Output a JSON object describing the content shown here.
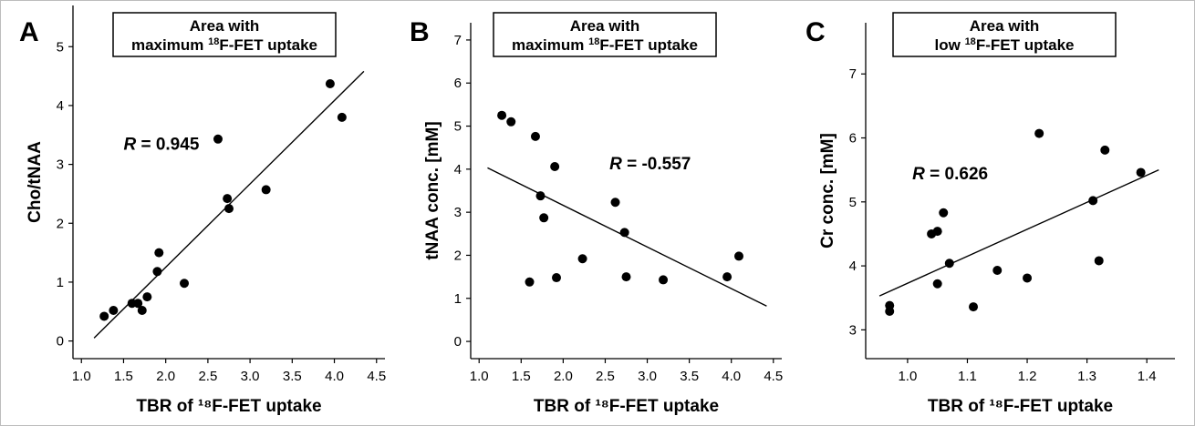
{
  "chart_data": [
    {
      "type": "scatter",
      "panel_label": "A",
      "xlabel": "TBR of ¹⁸F-FET uptake",
      "ylabel": "Cho/tNAA",
      "xlim": [
        0.9,
        4.6
      ],
      "ylim": [
        -0.3,
        5.7
      ],
      "xticks": [
        1.0,
        1.5,
        2.0,
        2.5,
        3.0,
        3.5,
        4.0,
        4.5
      ],
      "xtick_labels": [
        "1.0",
        "1.5",
        "2.0",
        "2.5",
        "3.0",
        "3.5",
        "4.0",
        "4.5"
      ],
      "yticks": [
        0,
        1,
        2,
        3,
        4,
        5
      ],
      "ytick_labels": [
        "0",
        "1",
        "2",
        "3",
        "4",
        "5"
      ],
      "box_lines": [
        {
          "text": "Area with"
        },
        {
          "text_before": "maximum ",
          "sup": "18",
          "text_after": "F-FET uptake"
        }
      ],
      "r_label": {
        "italic": "R",
        "text": " = 0.945"
      },
      "r_pos": [
        1.5,
        3.25
      ],
      "points": [
        {
          "x": 1.27,
          "y": 0.42
        },
        {
          "x": 1.38,
          "y": 0.52
        },
        {
          "x": 1.6,
          "y": 0.64
        },
        {
          "x": 1.67,
          "y": 0.64
        },
        {
          "x": 1.72,
          "y": 0.52
        },
        {
          "x": 1.78,
          "y": 0.75
        },
        {
          "x": 1.9,
          "y": 1.18
        },
        {
          "x": 1.92,
          "y": 1.5
        },
        {
          "x": 2.22,
          "y": 0.98
        },
        {
          "x": 2.62,
          "y": 3.43
        },
        {
          "x": 2.73,
          "y": 2.42
        },
        {
          "x": 2.75,
          "y": 2.25
        },
        {
          "x": 3.19,
          "y": 2.57
        },
        {
          "x": 3.95,
          "y": 4.37
        },
        {
          "x": 4.09,
          "y": 3.8
        }
      ],
      "regression": {
        "x1": 1.15,
        "y1": 0.05,
        "x2": 4.35,
        "y2": 4.58
      }
    },
    {
      "type": "scatter",
      "panel_label": "B",
      "xlabel": "TBR of ¹⁸F-FET uptake",
      "ylabel": "tNAA conc. [mM]",
      "xlim": [
        0.9,
        4.6
      ],
      "ylim": [
        -0.4,
        7.4
      ],
      "xticks": [
        1.0,
        1.5,
        2.0,
        2.5,
        3.0,
        3.5,
        4.0,
        4.5
      ],
      "xtick_labels": [
        "1.0",
        "1.5",
        "2.0",
        "2.5",
        "3.0",
        "3.5",
        "4.0",
        "4.5"
      ],
      "yticks": [
        0,
        1,
        2,
        3,
        4,
        5,
        6,
        7
      ],
      "ytick_labels": [
        "0",
        "1",
        "2",
        "3",
        "4",
        "5",
        "6",
        "7"
      ],
      "box_lines": [
        {
          "text": "Area with"
        },
        {
          "text_before": "maximum ",
          "sup": "18",
          "text_after": "F-FET uptake"
        }
      ],
      "r_label": {
        "italic": "R",
        "text": " = -0.557"
      },
      "r_pos": [
        2.55,
        4.0
      ],
      "points": [
        {
          "x": 1.27,
          "y": 5.25
        },
        {
          "x": 1.38,
          "y": 5.1
        },
        {
          "x": 1.67,
          "y": 4.76
        },
        {
          "x": 1.9,
          "y": 4.06
        },
        {
          "x": 1.73,
          "y": 3.38
        },
        {
          "x": 1.77,
          "y": 2.87
        },
        {
          "x": 1.6,
          "y": 1.38
        },
        {
          "x": 1.92,
          "y": 1.48
        },
        {
          "x": 2.23,
          "y": 1.92
        },
        {
          "x": 2.62,
          "y": 3.23
        },
        {
          "x": 2.73,
          "y": 2.53
        },
        {
          "x": 2.75,
          "y": 1.5
        },
        {
          "x": 3.19,
          "y": 1.43
        },
        {
          "x": 3.95,
          "y": 1.5
        },
        {
          "x": 4.09,
          "y": 1.98
        }
      ],
      "regression": {
        "x1": 1.1,
        "y1": 4.03,
        "x2": 4.42,
        "y2": 0.82
      }
    },
    {
      "type": "scatter",
      "panel_label": "C",
      "xlabel": "TBR of ¹⁸F-FET uptake",
      "ylabel": "Cr conc. [mM]",
      "xlim": [
        0.93,
        1.447
      ],
      "ylim": [
        2.55,
        7.8
      ],
      "xticks": [
        1.0,
        1.1,
        1.2,
        1.3,
        1.4
      ],
      "xtick_labels": [
        "1.0",
        "1.1",
        "1.2",
        "1.3",
        "1.4"
      ],
      "yticks": [
        3,
        4,
        5,
        6,
        7
      ],
      "ytick_labels": [
        "3",
        "4",
        "5",
        "6",
        "7"
      ],
      "box_lines": [
        {
          "text": "Area with"
        },
        {
          "text_before": "low ",
          "sup": "18",
          "text_after": "F-FET uptake"
        }
      ],
      "r_label": {
        "italic": "R",
        "text": " = 0.626"
      },
      "r_pos": [
        1.008,
        5.35
      ],
      "points": [
        {
          "x": 0.97,
          "y": 3.38
        },
        {
          "x": 0.97,
          "y": 3.29
        },
        {
          "x": 1.04,
          "y": 4.5
        },
        {
          "x": 1.05,
          "y": 4.54
        },
        {
          "x": 1.06,
          "y": 4.83
        },
        {
          "x": 1.05,
          "y": 3.72
        },
        {
          "x": 1.07,
          "y": 4.04
        },
        {
          "x": 1.11,
          "y": 3.36
        },
        {
          "x": 1.15,
          "y": 3.93
        },
        {
          "x": 1.2,
          "y": 3.81
        },
        {
          "x": 1.22,
          "y": 6.07
        },
        {
          "x": 1.31,
          "y": 5.02
        },
        {
          "x": 1.32,
          "y": 4.08
        },
        {
          "x": 1.33,
          "y": 5.81
        },
        {
          "x": 1.39,
          "y": 5.46
        }
      ],
      "regression": {
        "x1": 0.953,
        "y1": 3.53,
        "x2": 1.42,
        "y2": 5.5
      }
    }
  ]
}
